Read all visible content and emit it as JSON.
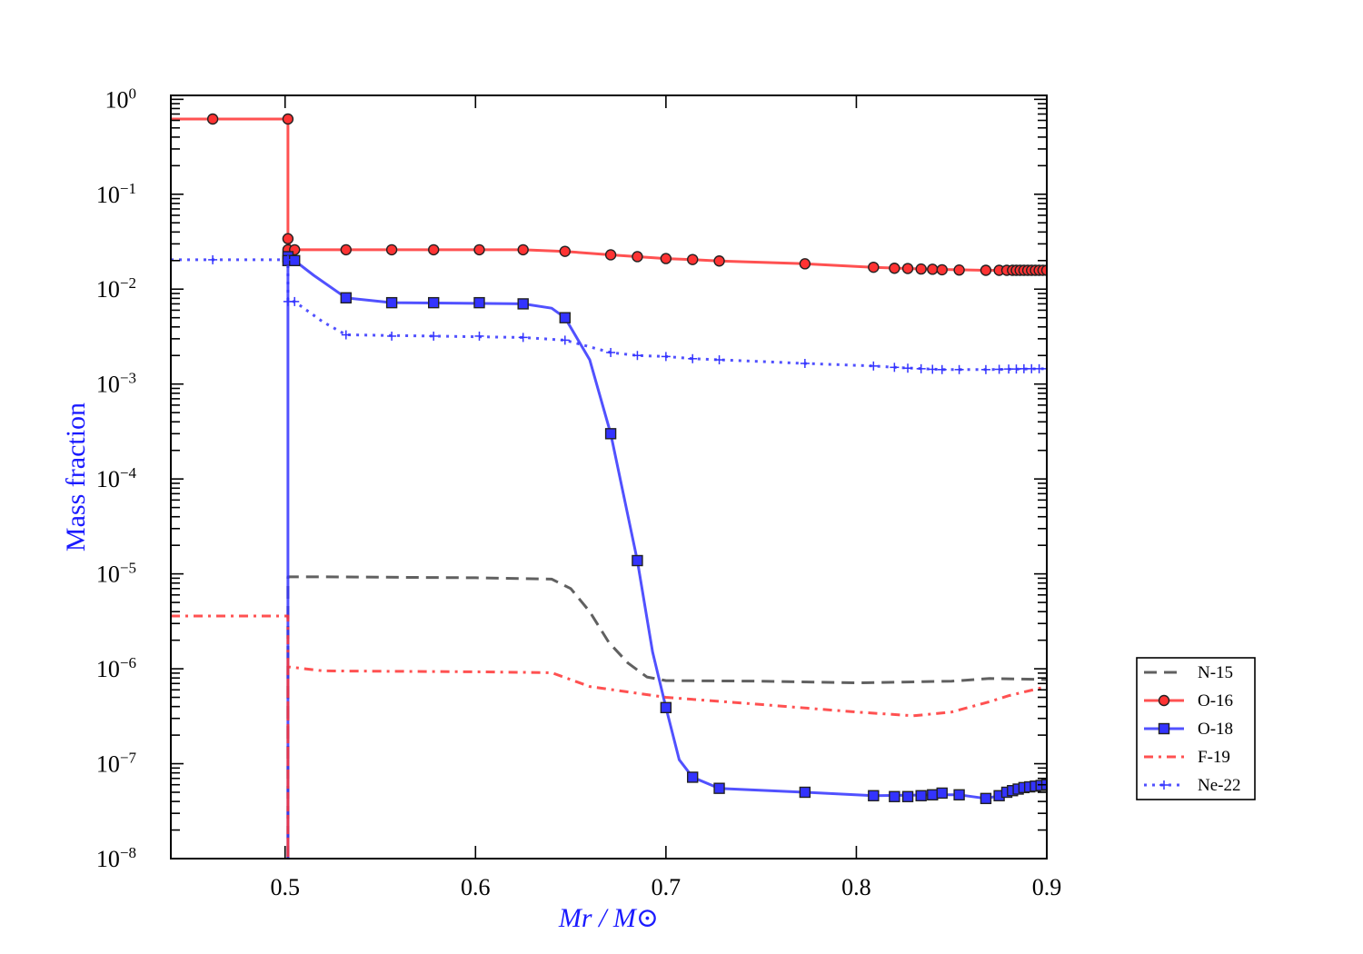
{
  "chart_data": {
    "type": "line",
    "title": "",
    "xlabel": "Mr / M⊙",
    "ylabel": "Mass fraction",
    "xscale": "linear",
    "yscale": "log",
    "xlim": [
      0.44,
      0.9
    ],
    "ylim": [
      1e-08,
      1.1
    ],
    "xticks": [
      0.5,
      0.6,
      0.7,
      0.8,
      0.9
    ],
    "xtick_labels": [
      "0.5",
      "0.6",
      "0.7",
      "0.8",
      "0.9"
    ],
    "yticks_exponents": [
      0,
      -1,
      -2,
      -3,
      -4,
      -5,
      -6,
      -7,
      -8
    ],
    "ytick_labels": [
      {
        "base": "10",
        "exp": "0"
      },
      {
        "base": "10",
        "exp": "−1"
      },
      {
        "base": "10",
        "exp": "−2"
      },
      {
        "base": "10",
        "exp": "−3"
      },
      {
        "base": "10",
        "exp": "−4"
      },
      {
        "base": "10",
        "exp": "−5"
      },
      {
        "base": "10",
        "exp": "−6"
      },
      {
        "base": "10",
        "exp": "−7"
      },
      {
        "base": "10",
        "exp": "−8"
      }
    ],
    "grid": false,
    "legend_placement": "outside-right",
    "series": [
      {
        "name": "N-15",
        "color": "#444444",
        "style": "dashed",
        "marker": "none",
        "points": [
          [
            0.5015,
            1e-10
          ],
          [
            0.5015,
            9.3e-06
          ],
          [
            0.52,
            9.3e-06
          ],
          [
            0.6,
            9.1e-06
          ],
          [
            0.64,
            8.8e-06
          ],
          [
            0.65,
            7e-06
          ],
          [
            0.66,
            4e-06
          ],
          [
            0.67,
            1.9e-06
          ],
          [
            0.68,
            1.15e-06
          ],
          [
            0.69,
            8.2e-07
          ],
          [
            0.7,
            7.5e-07
          ],
          [
            0.75,
            7.4e-07
          ],
          [
            0.8,
            7.1e-07
          ],
          [
            0.85,
            7.4e-07
          ],
          [
            0.87,
            7.9e-07
          ],
          [
            0.9,
            7.7e-07
          ]
        ],
        "markers": []
      },
      {
        "name": "O-16",
        "color": "#ff3333",
        "style": "solid",
        "marker": "circle",
        "points": [
          [
            0.44,
            0.62
          ],
          [
            0.5015,
            0.62
          ],
          [
            0.5015,
            0.034
          ],
          [
            0.503,
            0.026
          ],
          [
            0.532,
            0.026
          ],
          [
            0.625,
            0.026
          ],
          [
            0.647,
            0.025
          ],
          [
            0.671,
            0.023
          ],
          [
            0.685,
            0.022
          ],
          [
            0.7,
            0.021
          ],
          [
            0.714,
            0.0205
          ],
          [
            0.728,
            0.0198
          ],
          [
            0.773,
            0.0185
          ],
          [
            0.809,
            0.017
          ],
          [
            0.84,
            0.0162
          ],
          [
            0.868,
            0.0158
          ],
          [
            0.9,
            0.0158
          ]
        ],
        "markers": [
          [
            0.462,
            0.62
          ],
          [
            0.5015,
            0.62
          ],
          [
            0.5015,
            0.034
          ],
          [
            0.5015,
            0.026
          ],
          [
            0.505,
            0.026
          ],
          [
            0.532,
            0.026
          ],
          [
            0.556,
            0.026
          ],
          [
            0.578,
            0.026
          ],
          [
            0.602,
            0.026
          ],
          [
            0.625,
            0.026
          ],
          [
            0.647,
            0.025
          ],
          [
            0.671,
            0.023
          ],
          [
            0.685,
            0.022
          ],
          [
            0.7,
            0.021
          ],
          [
            0.714,
            0.0205
          ],
          [
            0.728,
            0.0198
          ],
          [
            0.773,
            0.0185
          ],
          [
            0.809,
            0.017
          ],
          [
            0.82,
            0.0166
          ],
          [
            0.827,
            0.0165
          ],
          [
            0.834,
            0.0163
          ],
          [
            0.84,
            0.0162
          ],
          [
            0.845,
            0.016
          ],
          [
            0.854,
            0.0159
          ],
          [
            0.868,
            0.0158
          ],
          [
            0.875,
            0.0158
          ],
          [
            0.879,
            0.0158
          ],
          [
            0.882,
            0.0158
          ],
          [
            0.884,
            0.0158
          ],
          [
            0.886,
            0.0158
          ],
          [
            0.888,
            0.0158
          ],
          [
            0.89,
            0.0158
          ],
          [
            0.892,
            0.0158
          ],
          [
            0.894,
            0.0158
          ],
          [
            0.896,
            0.0158
          ],
          [
            0.898,
            0.0158
          ],
          [
            0.9,
            0.0158
          ]
        ]
      },
      {
        "name": "O-18",
        "color": "#3333ff",
        "style": "solid",
        "marker": "square",
        "points": [
          [
            0.5015,
            1e-10
          ],
          [
            0.5015,
            0.02
          ],
          [
            0.505,
            0.02
          ],
          [
            0.515,
            0.014
          ],
          [
            0.532,
            0.0081
          ],
          [
            0.556,
            0.0072
          ],
          [
            0.625,
            0.007
          ],
          [
            0.64,
            0.0063
          ],
          [
            0.647,
            0.005
          ],
          [
            0.66,
            0.0018
          ],
          [
            0.671,
            0.0003
          ],
          [
            0.685,
            1.38e-05
          ],
          [
            0.693,
            1.5e-06
          ],
          [
            0.7,
            3.9e-07
          ],
          [
            0.707,
            1.1e-07
          ],
          [
            0.714,
            7.2e-08
          ],
          [
            0.728,
            5.5e-08
          ],
          [
            0.773,
            5e-08
          ],
          [
            0.809,
            4.6e-08
          ],
          [
            0.84,
            4.7e-08
          ],
          [
            0.854,
            4.7e-08
          ],
          [
            0.868,
            4.3e-08
          ],
          [
            0.875,
            4.6e-08
          ],
          [
            0.88,
            5e-08
          ],
          [
            0.89,
            5.7e-08
          ],
          [
            0.9,
            6e-08
          ]
        ],
        "markers": [
          [
            0.5015,
            0.022
          ],
          [
            0.5015,
            0.02
          ],
          [
            0.505,
            0.02
          ],
          [
            0.532,
            0.0081
          ],
          [
            0.556,
            0.0072
          ],
          [
            0.578,
            0.0072
          ],
          [
            0.602,
            0.0072
          ],
          [
            0.625,
            0.007
          ],
          [
            0.647,
            0.005
          ],
          [
            0.671,
            0.0003
          ],
          [
            0.685,
            1.38e-05
          ],
          [
            0.7,
            3.9e-07
          ],
          [
            0.714,
            7.2e-08
          ],
          [
            0.728,
            5.5e-08
          ],
          [
            0.773,
            5e-08
          ],
          [
            0.809,
            4.6e-08
          ],
          [
            0.82,
            4.5e-08
          ],
          [
            0.827,
            4.5e-08
          ],
          [
            0.834,
            4.6e-08
          ],
          [
            0.84,
            4.7e-08
          ],
          [
            0.845,
            4.9e-08
          ],
          [
            0.854,
            4.7e-08
          ],
          [
            0.868,
            4.3e-08
          ],
          [
            0.875,
            4.6e-08
          ],
          [
            0.879,
            5e-08
          ],
          [
            0.882,
            5.2e-08
          ],
          [
            0.885,
            5.4e-08
          ],
          [
            0.888,
            5.6e-08
          ],
          [
            0.891,
            5.7e-08
          ],
          [
            0.894,
            5.8e-08
          ],
          [
            0.897,
            5.9e-08
          ],
          [
            0.9,
            6e-08
          ]
        ]
      },
      {
        "name": "F-19",
        "color": "#ff3333",
        "style": "dashdot",
        "marker": "none",
        "points": [
          [
            0.44,
            3.6e-06
          ],
          [
            0.5015,
            3.6e-06
          ],
          [
            0.5015,
            1e-10
          ],
          [
            0.5015,
            1.05e-06
          ],
          [
            0.52,
            9.5e-07
          ],
          [
            0.6,
            9.3e-07
          ],
          [
            0.64,
            9.1e-07
          ],
          [
            0.66,
            6.5e-07
          ],
          [
            0.7,
            5e-07
          ],
          [
            0.75,
            4.2e-07
          ],
          [
            0.8,
            3.5e-07
          ],
          [
            0.83,
            3.2e-07
          ],
          [
            0.85,
            3.5e-07
          ],
          [
            0.87,
            4.5e-07
          ],
          [
            0.88,
            5.2e-07
          ],
          [
            0.9,
            6.5e-07
          ]
        ],
        "markers": []
      },
      {
        "name": "Ne-22",
        "color": "#3333ff",
        "style": "dotted",
        "marker": "plus",
        "points": [
          [
            0.44,
            0.0204
          ],
          [
            0.5015,
            0.0204
          ],
          [
            0.5015,
            0.0074
          ],
          [
            0.505,
            0.0074
          ],
          [
            0.52,
            0.0045
          ],
          [
            0.532,
            0.0033
          ],
          [
            0.625,
            0.0031
          ],
          [
            0.647,
            0.0029
          ],
          [
            0.671,
            0.00215
          ],
          [
            0.685,
            0.002
          ],
          [
            0.7,
            0.00195
          ],
          [
            0.714,
            0.00185
          ],
          [
            0.728,
            0.0018
          ],
          [
            0.773,
            0.00165
          ],
          [
            0.809,
            0.00155
          ],
          [
            0.82,
            0.0015
          ],
          [
            0.845,
            0.00142
          ],
          [
            0.868,
            0.00142
          ],
          [
            0.9,
            0.00145
          ]
        ],
        "markers": [
          [
            0.462,
            0.0204
          ],
          [
            0.5015,
            0.0204
          ],
          [
            0.5015,
            0.0074
          ],
          [
            0.505,
            0.0074
          ],
          [
            0.532,
            0.0033
          ],
          [
            0.556,
            0.0032
          ],
          [
            0.578,
            0.0032
          ],
          [
            0.602,
            0.0032
          ],
          [
            0.625,
            0.0031
          ],
          [
            0.647,
            0.0029
          ],
          [
            0.671,
            0.00215
          ],
          [
            0.685,
            0.002
          ],
          [
            0.7,
            0.00195
          ],
          [
            0.714,
            0.00185
          ],
          [
            0.728,
            0.0018
          ],
          [
            0.773,
            0.00165
          ],
          [
            0.809,
            0.00155
          ],
          [
            0.82,
            0.0015
          ],
          [
            0.827,
            0.00147
          ],
          [
            0.834,
            0.00145
          ],
          [
            0.84,
            0.00143
          ],
          [
            0.845,
            0.00142
          ],
          [
            0.854,
            0.00142
          ],
          [
            0.868,
            0.00142
          ],
          [
            0.875,
            0.00143
          ],
          [
            0.88,
            0.00144
          ],
          [
            0.884,
            0.00144
          ],
          [
            0.888,
            0.00145
          ],
          [
            0.892,
            0.00145
          ],
          [
            0.896,
            0.00145
          ],
          [
            0.9,
            0.00145
          ]
        ]
      }
    ]
  }
}
